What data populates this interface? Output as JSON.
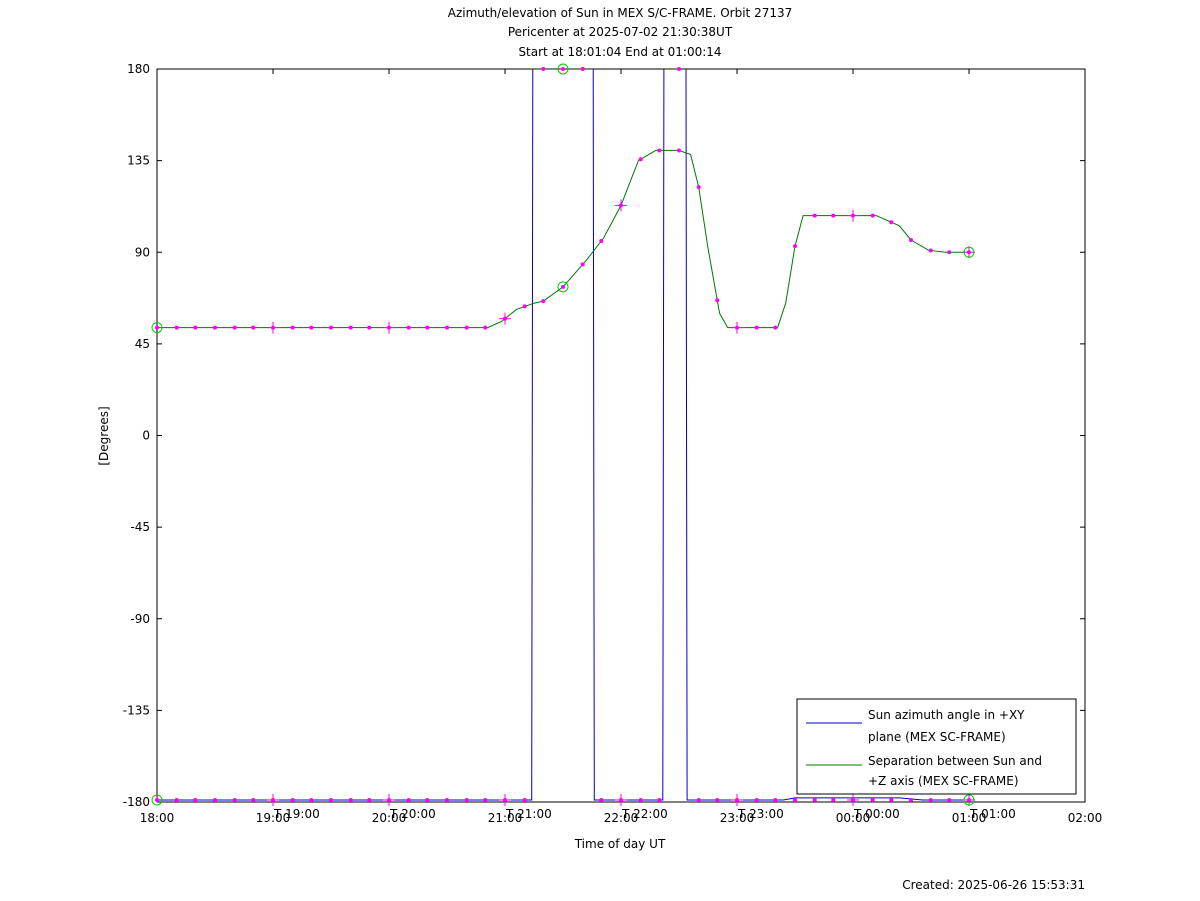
{
  "chart_data": {
    "type": "line",
    "title": "Azimuth/elevation of Sun in MEX S/C-FRAME.  Orbit 27137",
    "subtitle_1": "Pericenter at 2025-07-02 21:30:38UT",
    "subtitle_2": "Start at 18:01:04 End at 01:00:14",
    "xlabel": "Time of day UT",
    "ylabel": "[Degrees]",
    "footer": "Created: 2025-06-26 15:53:31",
    "xlim": [
      18.0,
      26.0
    ],
    "ylim": [
      -180,
      180
    ],
    "x_ticks": [
      {
        "v": 18,
        "label": "18:00"
      },
      {
        "v": 19,
        "label": "19:00"
      },
      {
        "v": 20,
        "label": "20:00"
      },
      {
        "v": 21,
        "label": "21:00"
      },
      {
        "v": 22,
        "label": "22:00"
      },
      {
        "v": 23,
        "label": "23:00"
      },
      {
        "v": 24,
        "label": "00:00"
      },
      {
        "v": 25,
        "label": "01:00"
      },
      {
        "v": 26,
        "label": "02:00"
      }
    ],
    "y_ticks": [
      {
        "v": 180,
        "label": "180"
      },
      {
        "v": 135,
        "label": "135"
      },
      {
        "v": 90,
        "label": "90"
      },
      {
        "v": 45,
        "label": "45"
      },
      {
        "v": 0,
        "label": "0"
      },
      {
        "v": -45,
        "label": "-45"
      },
      {
        "v": -90,
        "label": "-90"
      },
      {
        "v": -135,
        "label": "-135"
      },
      {
        "v": -180,
        "label": "-180"
      }
    ],
    "orbit_time_labels": [
      {
        "x": 19.0,
        "label": "19:00"
      },
      {
        "x": 20.0,
        "label": "20:00"
      },
      {
        "x": 21.0,
        "label": "21:00"
      },
      {
        "x": 22.0,
        "label": "22:00"
      },
      {
        "x": 23.0,
        "label": "23:00"
      },
      {
        "x": 24.0,
        "label": "00:00"
      },
      {
        "x": 25.0,
        "label": "01:00"
      }
    ],
    "legend_position": "bottom-right",
    "series": [
      {
        "name": "Sun azimuth angle in +XY plane (MEX SC-FRAME)",
        "legend_lines": [
          "Sun azimuth angle in +XY",
          "plane (MEX SC-FRAME)"
        ],
        "color": "#0000cc",
        "points": [
          [
            18.0,
            -179
          ],
          [
            19.0,
            -179
          ],
          [
            20.0,
            -179
          ],
          [
            21.0,
            -179
          ],
          [
            21.23,
            -179
          ],
          [
            21.24,
            180
          ],
          [
            21.4,
            180
          ],
          [
            21.6,
            180
          ],
          [
            21.76,
            180
          ],
          [
            21.77,
            -179
          ],
          [
            22.0,
            -179
          ],
          [
            22.2,
            -179
          ],
          [
            22.36,
            -179
          ],
          [
            22.37,
            180
          ],
          [
            22.5,
            180
          ],
          [
            22.56,
            180
          ],
          [
            22.57,
            -179
          ],
          [
            23.0,
            -179
          ],
          [
            23.4,
            -179
          ],
          [
            23.5,
            -178
          ],
          [
            24.0,
            -178
          ],
          [
            24.4,
            -178
          ],
          [
            24.6,
            -179
          ],
          [
            25.0,
            -179
          ]
        ]
      },
      {
        "name": "Separation between Sun and +Z axis (MEX SC-FRAME)",
        "legend_lines": [
          "Separation between Sun and",
          "+Z axis (MEX SC-FRAME)"
        ],
        "color": "#007700",
        "points": [
          [
            18.0,
            53
          ],
          [
            18.5,
            53
          ],
          [
            19.0,
            53
          ],
          [
            19.5,
            53
          ],
          [
            20.0,
            53
          ],
          [
            20.5,
            53
          ],
          [
            20.85,
            53
          ],
          [
            20.97,
            56
          ],
          [
            21.1,
            62
          ],
          [
            21.25,
            65
          ],
          [
            21.33,
            66
          ],
          [
            21.5,
            73
          ],
          [
            21.7,
            86
          ],
          [
            21.85,
            97
          ],
          [
            22.0,
            113
          ],
          [
            22.15,
            135
          ],
          [
            22.3,
            140
          ],
          [
            22.5,
            140
          ],
          [
            22.6,
            138
          ],
          [
            22.67,
            122
          ],
          [
            22.75,
            92
          ],
          [
            22.85,
            60
          ],
          [
            22.92,
            53
          ],
          [
            23.0,
            53
          ],
          [
            23.2,
            53
          ],
          [
            23.35,
            53
          ],
          [
            23.42,
            65
          ],
          [
            23.5,
            93
          ],
          [
            23.57,
            108
          ],
          [
            23.65,
            108
          ],
          [
            24.0,
            108
          ],
          [
            24.2,
            108
          ],
          [
            24.4,
            103
          ],
          [
            24.5,
            96
          ],
          [
            24.65,
            91
          ],
          [
            24.8,
            90
          ],
          [
            25.0,
            90
          ]
        ]
      }
    ],
    "sample_markers": {
      "color": "#ff00ff",
      "separation_x": [
        18.0,
        18.17,
        18.33,
        18.5,
        18.67,
        18.83,
        19.0,
        19.17,
        19.33,
        19.5,
        19.67,
        19.83,
        20.0,
        20.17,
        20.33,
        20.5,
        20.67,
        20.83,
        21.0,
        21.17,
        21.33,
        21.5,
        21.67,
        21.83,
        22.0,
        22.17,
        22.33,
        22.5,
        22.67,
        22.83,
        23.0,
        23.17,
        23.33,
        23.5,
        23.67,
        23.83,
        24.0,
        24.17,
        24.33,
        24.5,
        24.67,
        24.83,
        25.0
      ],
      "azimuth_bottom_x": [
        18.0,
        18.17,
        18.33,
        18.5,
        18.67,
        18.83,
        19.0,
        19.17,
        19.33,
        19.5,
        19.67,
        19.83,
        20.0,
        20.17,
        20.33,
        20.5,
        20.67,
        20.83,
        21.0,
        21.17,
        21.83,
        22.0,
        22.17,
        22.33,
        22.67,
        22.83,
        23.0,
        23.17,
        23.33,
        23.5,
        23.67,
        23.83,
        24.0,
        24.17,
        24.33,
        24.5,
        24.67,
        24.83,
        25.0
      ],
      "azimuth_top_x": [
        21.33,
        21.5,
        21.67,
        22.5
      ],
      "cross_x": [
        19.0,
        20.0,
        21.0,
        22.0,
        23.0,
        24.0,
        25.0
      ],
      "circle_points": [
        [
          18.0,
          53
        ],
        [
          21.5,
          73
        ],
        [
          25.0,
          90
        ],
        [
          18.0,
          -179
        ],
        [
          21.5,
          180
        ],
        [
          25.0,
          -179
        ]
      ]
    }
  }
}
